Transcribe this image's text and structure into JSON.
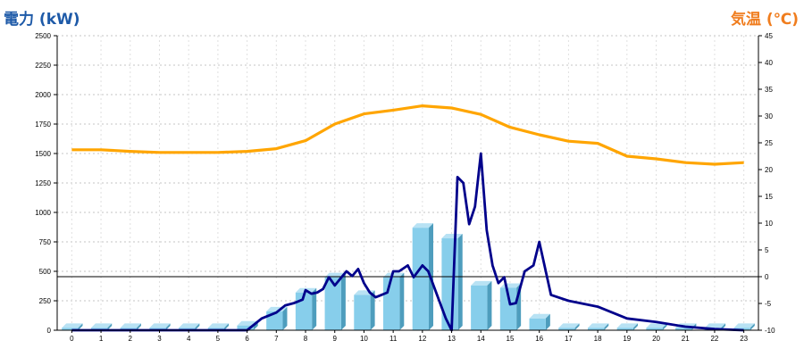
{
  "chart_data": {
    "type": "bar",
    "left_axis_label": "電力 (kW)",
    "right_axis_label": "気温 (℃)",
    "left_ylim": [
      0,
      2500
    ],
    "right_ylim": [
      -10,
      45
    ],
    "left_ticks": [
      0,
      250,
      500,
      750,
      1000,
      1250,
      1500,
      1750,
      2000,
      2250,
      2500
    ],
    "right_ticks": [
      -10,
      -5,
      0,
      5,
      10,
      15,
      20,
      25,
      30,
      35,
      40,
      45
    ],
    "categories": [
      "0",
      "1",
      "2",
      "3",
      "4",
      "5",
      "6",
      "7",
      "8",
      "9",
      "10",
      "11",
      "12",
      "13",
      "14",
      "15",
      "16",
      "17",
      "18",
      "19",
      "20",
      "21",
      "22",
      "23"
    ],
    "grid": true,
    "colors": {
      "bars": "#87ceeb",
      "power_line": "#00008b",
      "temperature_line": "#ffa500",
      "left_title": "#1e5aa8",
      "right_title": "#f07d1e"
    },
    "series": [
      {
        "kind": "bar",
        "axis": "left",
        "values": [
          20,
          20,
          20,
          20,
          20,
          20,
          40,
          160,
          320,
          450,
          300,
          450,
          870,
          780,
          380,
          360,
          100,
          20,
          20,
          20,
          20,
          20,
          20,
          20
        ]
      },
      {
        "kind": "line",
        "axis": "left",
        "x": [
          0,
          1,
          2,
          3,
          4,
          5,
          6,
          6.5,
          7,
          7.3,
          7.6,
          7.9,
          8,
          8.2,
          8.4,
          8.6,
          8.8,
          9,
          9.2,
          9.4,
          9.6,
          9.8,
          10,
          10.2,
          10.4,
          10.6,
          10.8,
          11,
          11.2,
          11.5,
          11.7,
          12,
          12.2,
          12.5,
          12.8,
          13,
          13.2,
          13.4,
          13.6,
          13.8,
          14,
          14.2,
          14.4,
          14.6,
          14.8,
          15,
          15.2,
          15.5,
          15.8,
          16,
          16.4,
          17,
          18,
          19,
          20,
          21,
          22,
          23
        ],
        "values": [
          0,
          0,
          0,
          0,
          0,
          0,
          0,
          100,
          150,
          210,
          230,
          260,
          340,
          310,
          320,
          350,
          450,
          380,
          440,
          500,
          460,
          520,
          400,
          320,
          280,
          300,
          320,
          500,
          500,
          550,
          450,
          550,
          500,
          300,
          100,
          0,
          1300,
          1250,
          900,
          1050,
          1500,
          850,
          550,
          400,
          450,
          220,
          230,
          500,
          550,
          750,
          300,
          250,
          200,
          100,
          70,
          30,
          10,
          0
        ]
      },
      {
        "kind": "line",
        "axis": "right",
        "values": [
          23.7,
          23.7,
          23.4,
          23.2,
          23.2,
          23.2,
          23.4,
          23.9,
          25.4,
          28.5,
          30.4,
          31.1,
          31.9,
          31.5,
          30.3,
          27.9,
          26.5,
          25.3,
          24.9,
          22.5,
          22,
          21.3,
          21,
          21.3
        ]
      }
    ]
  }
}
